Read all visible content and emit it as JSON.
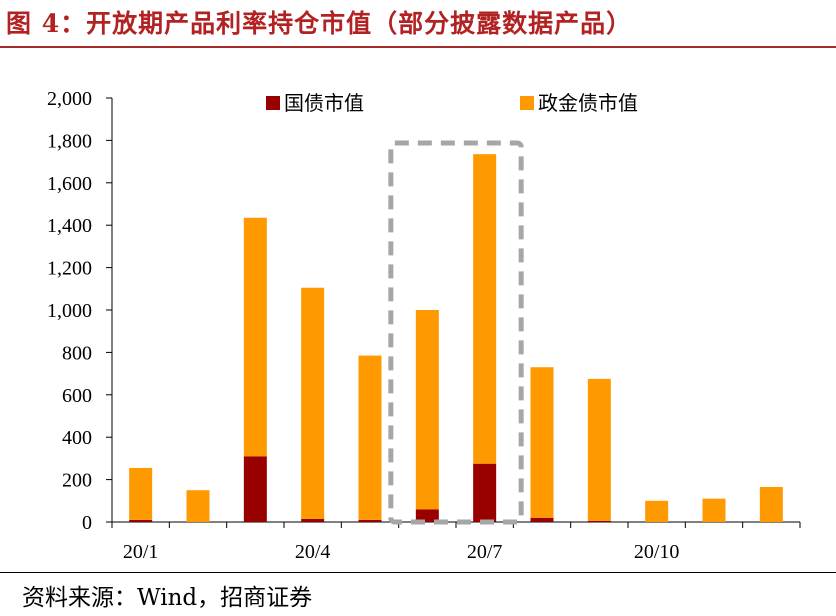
{
  "header": {
    "title": "图 4：开放期产品利率持仓市值（部分披露数据产品）"
  },
  "footer": {
    "source": "资料来源：Wind，招商证券"
  },
  "colors": {
    "series_gov": "#990000",
    "series_policy": "#ff9900",
    "title": "#b22222",
    "highlight_box": "#a6a6a6"
  },
  "chart_data": {
    "type": "bar",
    "stacked": true,
    "title": "",
    "xlabel": "",
    "ylabel": "",
    "ylim": [
      0,
      2000
    ],
    "yticks": [
      "0",
      "200",
      "400",
      "600",
      "800",
      "1,000",
      "1,200",
      "1,400",
      "1,600",
      "1,800",
      "2,000"
    ],
    "ytick_values": [
      0,
      200,
      400,
      600,
      800,
      1000,
      1200,
      1400,
      1600,
      1800,
      2000
    ],
    "categories": [
      "20/1",
      "20/2",
      "20/3",
      "20/4",
      "20/5",
      "20/6",
      "20/7",
      "20/8",
      "20/9",
      "20/10",
      "20/11",
      "20/12"
    ],
    "xtick_labels": [
      "20/1",
      "",
      "",
      "20/4",
      "",
      "",
      "20/7",
      "",
      "",
      "20/10",
      "",
      ""
    ],
    "series": [
      {
        "name": "国债市值",
        "color": "#990000",
        "values": [
          10,
          0,
          310,
          15,
          10,
          60,
          275,
          20,
          5,
          0,
          0,
          0
        ]
      },
      {
        "name": "政金债市值",
        "color": "#ff9900",
        "values": [
          245,
          150,
          1125,
          1090,
          775,
          940,
          1460,
          710,
          670,
          100,
          110,
          165
        ]
      }
    ],
    "legend": {
      "placement": "top",
      "entries": [
        "国债市值",
        "政金债市值"
      ]
    },
    "highlight": {
      "from_category": "20/6",
      "to_category": "20/7",
      "style": "dashed-box"
    },
    "grid": false
  }
}
